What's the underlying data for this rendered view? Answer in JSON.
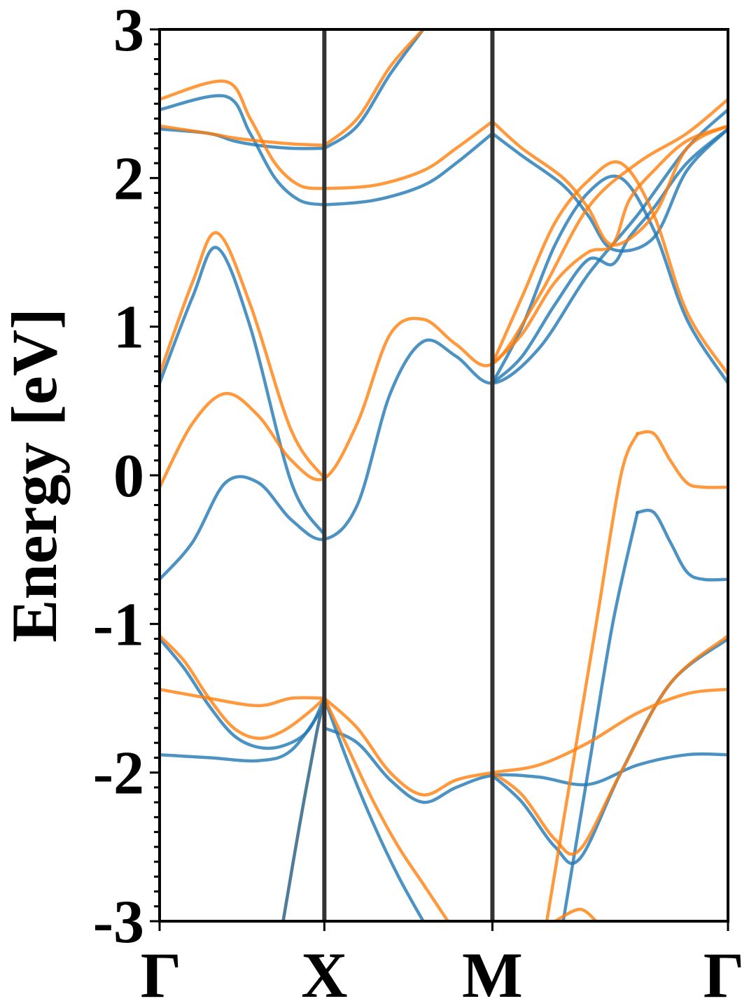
{
  "chart_data": {
    "type": "line",
    "title": "",
    "ylabel": "Energy [eV]",
    "xlabel": "",
    "ylim": [
      -3,
      3
    ],
    "xlim": [
      0,
      3.45
    ],
    "grid": false,
    "y_ticks": [
      -3,
      -2,
      -1,
      0,
      1,
      2,
      3
    ],
    "y_tick_labels": [
      "-3",
      "-2",
      "-1",
      "0",
      "1",
      "2",
      "3"
    ],
    "k_points": [
      {
        "label": "Γ",
        "x": 0.0
      },
      {
        "label": "X",
        "x": 1.0
      },
      {
        "label": "M",
        "x": 2.02
      },
      {
        "label": "Γ",
        "x": 3.45
      }
    ],
    "series_colors": {
      "blue": "#1f77b4",
      "orange": "#ff7f0e"
    },
    "series": [
      {
        "color": "blue",
        "x": [
          0,
          0.15,
          0.3,
          0.45,
          0.6,
          0.75,
          0.9,
          1.0
        ],
        "y": [
          -1.1,
          -1.3,
          -1.55,
          -1.75,
          -1.83,
          -1.82,
          -1.72,
          -1.5
        ]
      },
      {
        "color": "blue",
        "x": [
          0,
          0.3,
          0.6,
          0.8,
          1.0
        ],
        "y": [
          -1.88,
          -1.9,
          -1.92,
          -1.85,
          -1.55
        ]
      },
      {
        "color": "blue",
        "x": [
          1.0,
          1.2,
          1.4,
          1.6,
          1.8,
          2.02,
          2.3,
          2.6,
          2.9,
          3.2,
          3.45
        ],
        "y": [
          -1.7,
          -1.8,
          -2.05,
          -2.2,
          -2.1,
          -2.02,
          -2.03,
          -2.08,
          -1.95,
          -1.88,
          -1.88
        ]
      },
      {
        "color": "blue",
        "x": [
          1.0,
          1.15,
          1.3,
          1.45,
          1.6
        ],
        "y": [
          -1.5,
          -1.95,
          -2.35,
          -2.7,
          -3.0
        ]
      },
      {
        "color": "blue",
        "x": [
          2.02,
          2.2,
          2.4,
          2.55,
          2.8,
          3.1,
          3.45
        ],
        "y": [
          -2.02,
          -2.2,
          -2.5,
          -2.58,
          -2.0,
          -1.4,
          -1.1
        ]
      },
      {
        "color": "blue",
        "x": [
          0.0,
          0.2,
          0.4,
          0.6,
          0.8,
          1.0,
          1.2,
          1.4,
          1.6,
          1.8,
          2.02,
          2.3,
          2.6,
          2.9,
          3.2,
          3.45
        ],
        "y": [
          -0.7,
          -0.45,
          -0.05,
          -0.05,
          -0.3,
          -0.43,
          -0.2,
          0.55,
          0.9,
          0.8,
          0.62,
          0.85,
          1.35,
          1.75,
          2.2,
          2.46
        ]
      },
      {
        "color": "blue",
        "x": [
          0,
          0.2,
          0.35,
          0.55,
          0.8,
          1.0
        ],
        "y": [
          0.62,
          1.2,
          1.53,
          1.0,
          -0.05,
          -0.4
        ]
      },
      {
        "color": "blue",
        "x": [
          0,
          0.4,
          0.55,
          0.7,
          0.85,
          1.0
        ],
        "y": [
          2.46,
          2.55,
          2.3,
          2.0,
          1.85,
          1.82
        ]
      },
      {
        "color": "blue",
        "x": [
          1.0,
          1.3,
          1.6,
          1.8,
          2.02
        ],
        "y": [
          1.82,
          1.85,
          1.95,
          2.1,
          2.3
        ]
      },
      {
        "color": "blue",
        "x": [
          0,
          0.3,
          0.45,
          0.6,
          0.8,
          1.0
        ],
        "y": [
          2.33,
          2.3,
          2.25,
          2.22,
          2.2,
          2.2
        ]
      },
      {
        "color": "blue",
        "x": [
          1.0,
          1.2,
          1.4,
          1.6
        ],
        "y": [
          2.2,
          2.35,
          2.7,
          3.0
        ]
      },
      {
        "color": "blue",
        "x": [
          2.02,
          2.2,
          2.45,
          2.6,
          2.75,
          3.0,
          3.2,
          3.45
        ],
        "y": [
          2.3,
          2.15,
          1.95,
          1.75,
          1.52,
          1.6,
          2.05,
          2.33
        ]
      },
      {
        "color": "blue",
        "x": [
          2.02,
          2.2,
          2.4,
          2.6,
          2.75,
          2.85,
          3.0,
          3.2,
          3.45
        ],
        "y": [
          0.62,
          0.8,
          1.15,
          1.45,
          1.42,
          1.6,
          1.8,
          2.1,
          2.33
        ]
      },
      {
        "color": "blue",
        "x": [
          2.02,
          2.2,
          2.4,
          2.6,
          2.8,
          3.0,
          3.2,
          3.45
        ],
        "y": [
          0.62,
          1.0,
          1.55,
          1.9,
          2.0,
          1.65,
          1.05,
          0.62
        ]
      },
      {
        "color": "blue",
        "x": [
          2.9,
          3.0,
          3.1,
          3.2,
          3.3,
          3.45
        ],
        "y": [
          -0.25,
          -0.25,
          -0.45,
          -0.65,
          -0.7,
          -0.7
        ]
      },
      {
        "color": "blue",
        "x": [
          2.45,
          2.6,
          2.75,
          2.9
        ],
        "y": [
          -3.0,
          -2.0,
          -1.0,
          -0.25
        ]
      },
      {
        "color": "orange",
        "x": [
          0,
          0.15,
          0.3,
          0.45,
          0.6,
          0.75,
          0.9,
          1.0
        ],
        "y": [
          -1.08,
          -1.25,
          -1.5,
          -1.7,
          -1.77,
          -1.72,
          -1.6,
          -1.5
        ]
      },
      {
        "color": "orange",
        "x": [
          0,
          0.3,
          0.6,
          0.8,
          1.0
        ],
        "y": [
          -1.44,
          -1.5,
          -1.55,
          -1.5,
          -1.5
        ]
      },
      {
        "color": "orange",
        "x": [
          1.0,
          1.2,
          1.4,
          1.6,
          1.8,
          2.02,
          2.3,
          2.6,
          2.9,
          3.2,
          3.45
        ],
        "y": [
          -1.5,
          -1.7,
          -2.0,
          -2.15,
          -2.05,
          -2.0,
          -1.95,
          -1.8,
          -1.6,
          -1.47,
          -1.44
        ]
      },
      {
        "color": "orange",
        "x": [
          1.0,
          1.15,
          1.3,
          1.45,
          1.6,
          1.75
        ],
        "y": [
          -1.5,
          -1.85,
          -2.2,
          -2.5,
          -2.75,
          -3.0
        ]
      },
      {
        "color": "orange",
        "x": [
          2.02,
          2.2,
          2.4,
          2.55,
          2.8,
          3.1,
          3.45
        ],
        "y": [
          -2.0,
          -2.15,
          -2.45,
          -2.52,
          -2.0,
          -1.4,
          -1.08
        ]
      },
      {
        "color": "orange",
        "x": [
          0.0,
          0.2,
          0.4,
          0.6,
          0.8,
          1.0,
          1.2,
          1.4,
          1.6,
          1.8,
          2.02,
          2.3,
          2.6,
          2.9,
          3.2,
          3.45
        ],
        "y": [
          -0.08,
          0.35,
          0.55,
          0.4,
          0.1,
          -0.02,
          0.35,
          0.95,
          1.05,
          0.88,
          0.75,
          1.2,
          1.8,
          2.1,
          2.3,
          2.53
        ]
      },
      {
        "color": "orange",
        "x": [
          0,
          0.2,
          0.35,
          0.55,
          0.8,
          1.0
        ],
        "y": [
          0.68,
          1.3,
          1.63,
          1.15,
          0.3,
          -0.02
        ]
      },
      {
        "color": "orange",
        "x": [
          0,
          0.4,
          0.55,
          0.7,
          0.85,
          1.0
        ],
        "y": [
          2.53,
          2.65,
          2.4,
          2.1,
          1.95,
          1.93
        ]
      },
      {
        "color": "orange",
        "x": [
          1.0,
          1.3,
          1.6,
          1.8,
          2.02
        ],
        "y": [
          1.93,
          1.95,
          2.05,
          2.2,
          2.38
        ]
      },
      {
        "color": "orange",
        "x": [
          0,
          0.3,
          0.45,
          0.6,
          0.8,
          1.0
        ],
        "y": [
          2.35,
          2.3,
          2.27,
          2.25,
          2.23,
          2.22
        ]
      },
      {
        "color": "orange",
        "x": [
          1.0,
          1.2,
          1.4,
          1.6
        ],
        "y": [
          2.22,
          2.4,
          2.75,
          3.0
        ]
      },
      {
        "color": "orange",
        "x": [
          2.02,
          2.2,
          2.45,
          2.6,
          2.75,
          3.0,
          3.2,
          3.45
        ],
        "y": [
          2.38,
          2.2,
          2.0,
          1.8,
          1.55,
          1.75,
          2.2,
          2.35
        ]
      },
      {
        "color": "orange",
        "x": [
          2.02,
          2.2,
          2.4,
          2.6,
          2.75,
          2.85,
          3.0,
          3.2,
          3.45
        ],
        "y": [
          0.75,
          0.95,
          1.3,
          1.5,
          1.55,
          1.85,
          2.05,
          2.25,
          2.35
        ]
      },
      {
        "color": "orange",
        "x": [
          2.02,
          2.2,
          2.4,
          2.6,
          2.8,
          3.0,
          3.2,
          3.45
        ],
        "y": [
          0.75,
          1.2,
          1.7,
          1.98,
          2.1,
          1.75,
          1.1,
          0.68
        ]
      },
      {
        "color": "orange",
        "x": [
          2.9,
          3.0,
          3.1,
          3.2,
          3.3,
          3.45
        ],
        "y": [
          0.28,
          0.28,
          0.1,
          -0.05,
          -0.08,
          -0.08
        ]
      },
      {
        "color": "orange",
        "x": [
          2.35,
          2.5,
          2.65,
          2.8,
          2.9
        ],
        "y": [
          -3.0,
          -2.0,
          -1.0,
          0.0,
          0.28
        ]
      },
      {
        "color": "orange",
        "x": [
          0.75,
          0.85,
          0.95,
          1.0
        ],
        "y": [
          -3.0,
          -2.35,
          -1.75,
          -1.5
        ]
      },
      {
        "color": "blue",
        "x": [
          0.75,
          0.85,
          0.95,
          1.0
        ],
        "y": [
          -3.0,
          -2.35,
          -1.75,
          -1.5
        ]
      },
      {
        "color": "orange",
        "x": [
          2.4,
          2.55,
          2.65
        ],
        "y": [
          -3.0,
          -2.92,
          -3.0
        ]
      }
    ]
  }
}
